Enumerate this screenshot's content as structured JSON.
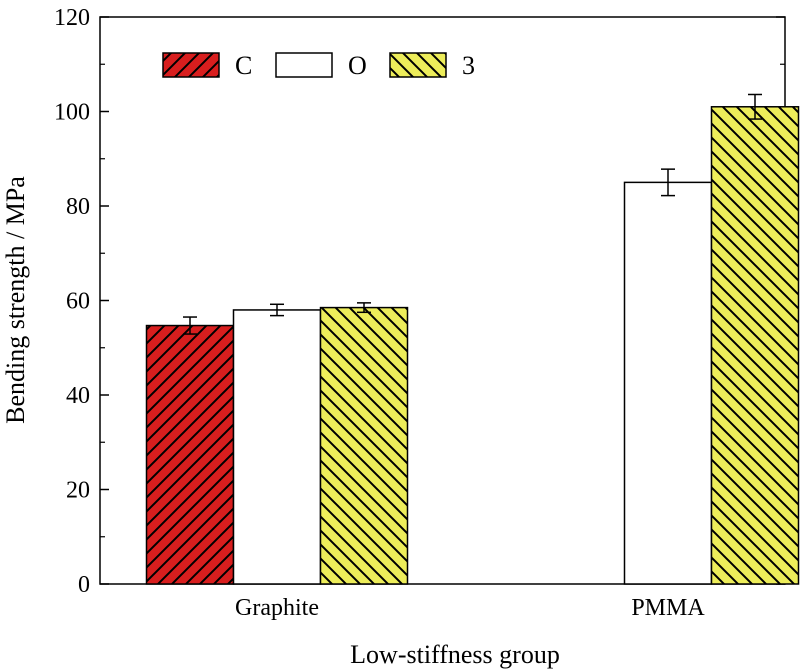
{
  "chart_data": {
    "type": "bar",
    "xlabel": "Low-stiffness group",
    "ylabel": "Bending strength / MPa",
    "ylim": [
      0,
      120
    ],
    "yticks": [
      0,
      20,
      40,
      60,
      80,
      100,
      120
    ],
    "categories": [
      "Graphite",
      "PMMA"
    ],
    "legend_position": "top-left",
    "grid": false,
    "series": [
      {
        "name": "C",
        "color": "#d81e1e",
        "pattern": "hatch-forward",
        "values": [
          54.7,
          null
        ],
        "errors": [
          1.8,
          null
        ]
      },
      {
        "name": "O",
        "color": "#ffffff",
        "pattern": "none",
        "values": [
          58.0,
          85.0
        ],
        "errors": [
          1.2,
          2.8
        ]
      },
      {
        "name": "3",
        "color": "#eded5a",
        "pattern": "hatch-back",
        "values": [
          58.5,
          101.0
        ],
        "errors": [
          1.0,
          2.6
        ]
      }
    ]
  }
}
